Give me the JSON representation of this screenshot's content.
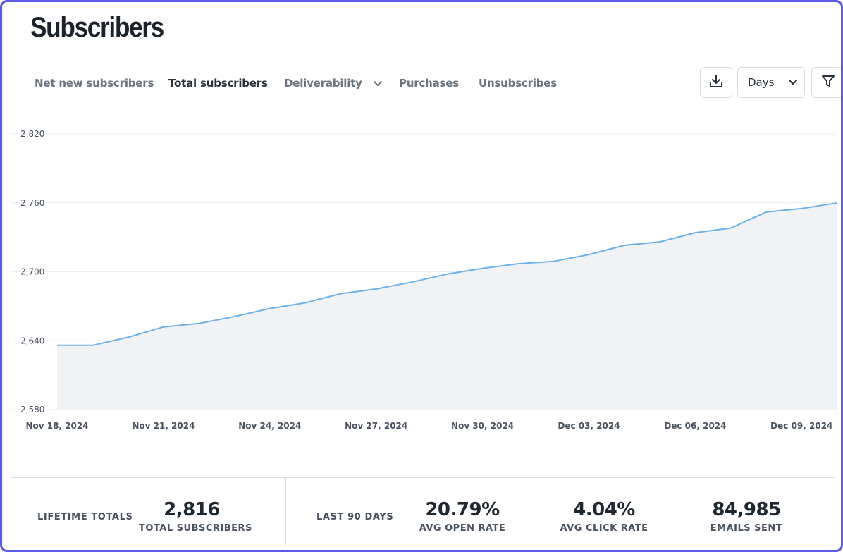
{
  "page": {
    "title": "Subscribers"
  },
  "tabs": [
    {
      "label": "Net new subscribers",
      "active": false
    },
    {
      "label": "Total subscribers",
      "active": true
    },
    {
      "label": "Deliverability",
      "active": false,
      "has_dropdown": true
    },
    {
      "label": "Purchases",
      "active": false
    },
    {
      "label": "Unsubscribes",
      "active": false
    }
  ],
  "toolbar": {
    "download_icon": "download-icon",
    "period_select": {
      "value": "Days",
      "icon": "chevron-down-icon"
    },
    "filter_icon": "filter-icon"
  },
  "chart_data": {
    "type": "area",
    "x": [
      "Nov 18, 2024",
      "Nov 19, 2024",
      "Nov 20, 2024",
      "Nov 21, 2024",
      "Nov 22, 2024",
      "Nov 23, 2024",
      "Nov 24, 2024",
      "Nov 25, 2024",
      "Nov 26, 2024",
      "Nov 27, 2024",
      "Nov 28, 2024",
      "Nov 29, 2024",
      "Nov 30, 2024",
      "Dec 01, 2024",
      "Dec 02, 2024",
      "Dec 03, 2024",
      "Dec 04, 2024",
      "Dec 05, 2024",
      "Dec 06, 2024",
      "Dec 07, 2024",
      "Dec 08, 2024",
      "Dec 09, 2024",
      "Dec 10, 2024"
    ],
    "values": [
      2636,
      2636,
      2643,
      2652,
      2655,
      2661,
      2668,
      2673,
      2681,
      2685,
      2691,
      2698,
      2703,
      2707,
      2709,
      2715,
      2723,
      2726,
      2734,
      2738,
      2752,
      2755,
      2760
    ],
    "ylim": [
      2580,
      2820
    ],
    "yticks": [
      "2,820",
      "2,760",
      "2,700",
      "2,640",
      "2,580"
    ],
    "xticks": [
      "Nov 18, 2024",
      "Nov 21, 2024",
      "Nov 24, 2024",
      "Nov 27, 2024",
      "Nov 30, 2024",
      "Dec 03, 2024",
      "Dec 06, 2024",
      "Dec 09, 2024"
    ],
    "grid": true,
    "line_color": "#6cb2ea",
    "fill_color": "#f1f2f5"
  },
  "stats": {
    "lifetime_caption": "LIFETIME TOTALS",
    "last90_caption": "LAST 90 DAYS",
    "total_subscribers": {
      "value": "2,816",
      "label": "TOTAL SUBSCRIBERS"
    },
    "avg_open_rate": {
      "value": "20.79%",
      "label": "AVG OPEN RATE"
    },
    "avg_click_rate": {
      "value": "4.04%",
      "label": "AVG CLICK RATE"
    },
    "emails_sent": {
      "value": "84,985",
      "label": "EMAILS SENT"
    }
  },
  "colors": {
    "frame_border": "#5b5be8",
    "text_primary": "#1f2733",
    "text_muted": "#6b7380"
  }
}
